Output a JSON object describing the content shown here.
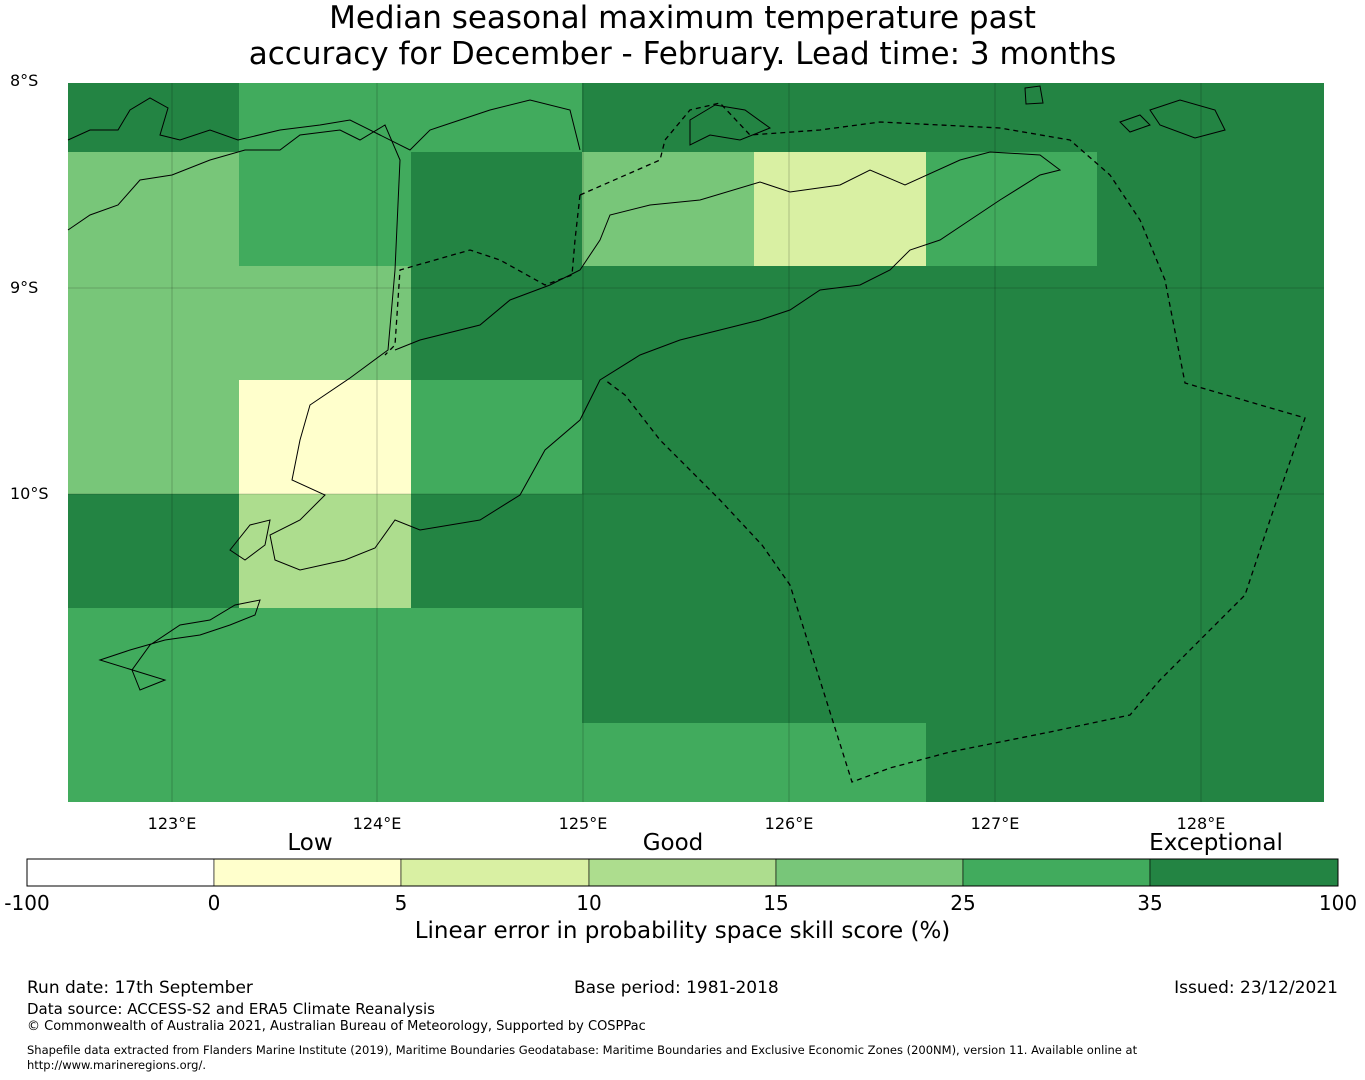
{
  "title_line1": "Median seasonal maximum temperature past",
  "title_line2": "accuracy for December - February. Lead time: 3 months",
  "map": {
    "lat_labels": [
      "8°S",
      "9°S",
      "10°S"
    ],
    "lon_labels": [
      "123°E",
      "124°E",
      "125°E",
      "126°E",
      "127°E",
      "128°E"
    ],
    "grid_cells_skill_category": [
      [
        6,
        5,
        5,
        6,
        6,
        6,
        6,
        6
      ],
      [
        4,
        5,
        6,
        4,
        2,
        5,
        6,
        6
      ],
      [
        4,
        4,
        6,
        6,
        6,
        6,
        6,
        6
      ],
      [
        4,
        1,
        5,
        6,
        6,
        6,
        6,
        6
      ],
      [
        6,
        3,
        6,
        6,
        6,
        6,
        6,
        6
      ],
      [
        5,
        5,
        5,
        6,
        6,
        6,
        6,
        6
      ],
      [
        5,
        5,
        5,
        5,
        5,
        6,
        6,
        6
      ]
    ],
    "land_color": "#000000",
    "boundary_style": "dashed"
  },
  "colorbar": {
    "categories": [
      "Low",
      "Good",
      "Exceptional"
    ],
    "ticks": [
      "-100",
      "0",
      "5",
      "10",
      "15",
      "25",
      "35",
      "100"
    ],
    "colors": [
      "#ffffff",
      "#ffffcc",
      "#d9f0a3",
      "#addd8e",
      "#78c679",
      "#41ab5d",
      "#238443"
    ],
    "label": "Linear error in probability space skill score (%)"
  },
  "footer": {
    "run_date": "Run date: 17th September",
    "base_period": "Base period: 1981-2018",
    "issued": "Issued: 23/12/2021",
    "data_source": "Data source: ACCESS-S2 and ERA5 Climate Reanalysis",
    "copyright": "© Commonwealth of Australia 2021, Australian Bureau of Meteorology, Supported by COSPPac",
    "shapefile_line1": "Shapefile data extracted from Flanders Marine Institute (2019), Maritime Boundaries Geodatabase: Maritime Boundaries and Exclusive Economic Zones (200NM), version 11. Available online at",
    "shapefile_line2": "http://www.marineregions.org/."
  }
}
